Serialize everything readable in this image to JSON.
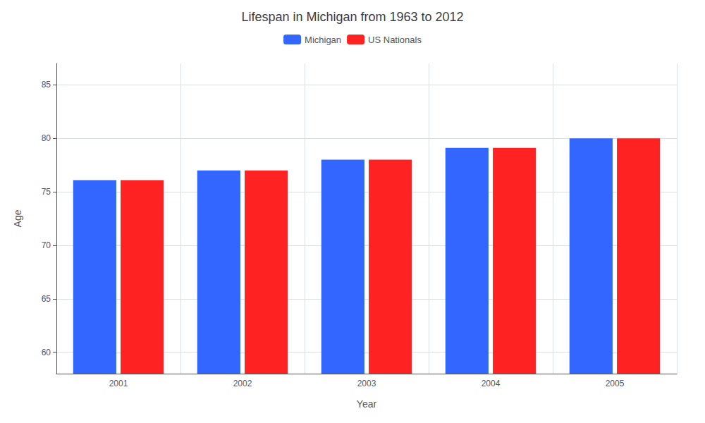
{
  "chart_data": {
    "type": "bar",
    "title": "Lifespan in Michigan from 1963 to 2012",
    "xlabel": "Year",
    "ylabel": "Age",
    "categories": [
      "2001",
      "2002",
      "2003",
      "2004",
      "2005"
    ],
    "series": [
      {
        "name": "Michigan",
        "color": "#3366ff",
        "values": [
          76.1,
          77.0,
          78.0,
          79.1,
          80.0
        ]
      },
      {
        "name": "US Nationals",
        "color": "#ff2222",
        "values": [
          76.1,
          77.0,
          78.0,
          79.1,
          80.0
        ]
      }
    ],
    "ylim": [
      58,
      87
    ],
    "yticks": [
      60,
      65,
      70,
      75,
      80,
      85
    ],
    "grid": true,
    "legend": "upper center"
  }
}
